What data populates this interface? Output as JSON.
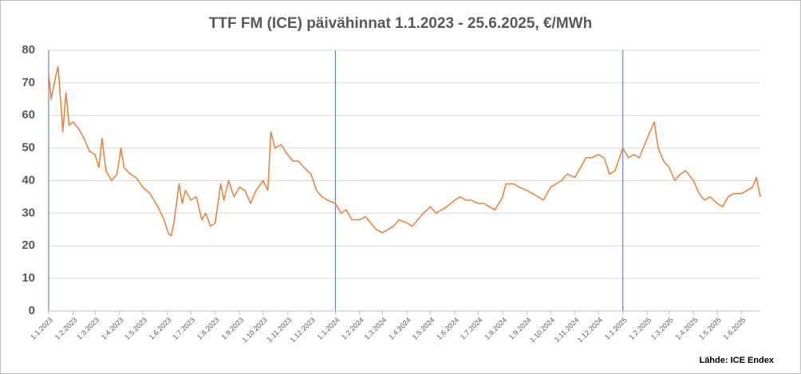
{
  "chart_data": {
    "type": "line",
    "title": "TTF FM (ICE) päivähinnat 1.1.2023 - 25.6.2025, €/MWh",
    "source": "Lähde: ICE Endex",
    "x": [
      "1.1.2023",
      "4.1.2023",
      "10.1.2023",
      "13.1.2023",
      "17.1.2023",
      "19.1.2023",
      "23.1.2023",
      "27.1.2023",
      "1.2.2023",
      "8.2.2023",
      "15.2.2023",
      "22.2.2023",
      "1.3.2023",
      "6.3.2023",
      "10.3.2023",
      "15.3.2023",
      "22.3.2023",
      "29.3.2023",
      "3.4.2023",
      "7.4.2023",
      "15.4.2023",
      "22.4.2023",
      "1.5.2023",
      "10.5.2023",
      "20.5.2023",
      "28.5.2023",
      "2.6.2023",
      "6.6.2023",
      "10.6.2023",
      "16.6.2023",
      "20.6.2023",
      "24.6.2023",
      "1.7.2023",
      "8.7.2023",
      "15.7.2023",
      "20.7.2023",
      "26.7.2023",
      "1.8.2023",
      "8.8.2023",
      "12.8.2023",
      "18.8.2023",
      "25.8.2023",
      "1.9.2023",
      "8.9.2023",
      "15.9.2023",
      "22.9.2023",
      "1.10.2023",
      "7.10.2023",
      "11.10.2023",
      "16.10.2023",
      "24.10.2023",
      "1.11.2023",
      "8.11.2023",
      "15.11.2023",
      "22.11.2023",
      "1.12.2023",
      "8.12.2023",
      "15.12.2023",
      "22.12.2023",
      "1.1.2024",
      "8.1.2024",
      "15.1.2024",
      "22.1.2024",
      "1.2.2024",
      "8.2.2024",
      "15.2.2024",
      "22.2.2024",
      "1.3.2024",
      "8.3.2024",
      "15.3.2024",
      "22.3.2024",
      "1.4.2024",
      "8.4.2024",
      "15.4.2024",
      "22.4.2024",
      "1.5.2024",
      "8.5.2024",
      "15.5.2024",
      "22.5.2024",
      "1.6.2024",
      "8.6.2024",
      "15.6.2024",
      "22.6.2024",
      "1.7.2024",
      "8.7.2024",
      "15.7.2024",
      "22.7.2024",
      "1.8.2024",
      "5.8.2024",
      "15.8.2024",
      "22.8.2024",
      "1.9.2024",
      "8.9.2024",
      "15.9.2024",
      "22.9.2024",
      "1.10.2024",
      "8.10.2024",
      "15.10.2024",
      "22.10.2024",
      "1.11.2024",
      "8.11.2024",
      "15.11.2024",
      "22.11.2024",
      "1.12.2024",
      "8.12.2024",
      "15.12.2024",
      "22.12.2024",
      "1.1.2025",
      "8.1.2025",
      "15.1.2025",
      "22.1.2025",
      "1.2.2025",
      "10.2.2025",
      "15.2.2025",
      "22.2.2025",
      "1.3.2025",
      "8.3.2025",
      "15.3.2025",
      "22.3.2025",
      "1.4.2025",
      "8.4.2025",
      "15.4.2025",
      "22.4.2025",
      "1.5.2025",
      "8.5.2025",
      "15.5.2025",
      "22.5.2025",
      "1.6.2025",
      "8.6.2025",
      "15.6.2025",
      "20.6.2025",
      "25.6.2025"
    ],
    "series": [
      {
        "color": "#ed7d31",
        "values": [
          73,
          65,
          72,
          75,
          62,
          55,
          67,
          57,
          58,
          56,
          53,
          49,
          48,
          44,
          53,
          43,
          40,
          42,
          50,
          44,
          42,
          41,
          38,
          36,
          32,
          28,
          24,
          23,
          28,
          39,
          33,
          37,
          34,
          35,
          28,
          30,
          26,
          27,
          39,
          34,
          40,
          35,
          38,
          37,
          33,
          37,
          40,
          37,
          55,
          50,
          51,
          48,
          46,
          46,
          44,
          42,
          37,
          35,
          34,
          33,
          30,
          31,
          28,
          28,
          29,
          27,
          25,
          24,
          25,
          26,
          28,
          27,
          26,
          28,
          30,
          32,
          30,
          31,
          32,
          34,
          35,
          34,
          34,
          33,
          33,
          32,
          31,
          35,
          39,
          39,
          38,
          37,
          36,
          35,
          34,
          38,
          39,
          40,
          42,
          41,
          44,
          47,
          47,
          48,
          47,
          42,
          43,
          50,
          47,
          48,
          47,
          53,
          58,
          50,
          46,
          44,
          40,
          42,
          43,
          40,
          36,
          34,
          35,
          33,
          32,
          35,
          36,
          36,
          37,
          38,
          41,
          35
        ]
      }
    ],
    "xticks": [
      "1.1.2023",
      "1.2.2023",
      "1.3.2023",
      "1.4.2023",
      "1.5.2023",
      "1.6.2023",
      "1.7.2023",
      "1.8.2023",
      "1.9.2023",
      "1.10.2023",
      "1.11.2023",
      "1.12.2023",
      "1.1.2024",
      "1.2.2024",
      "1.3.2024",
      "1.4.2024",
      "1.5.2024",
      "1.6.2024",
      "1.7.2024",
      "1.8.2024",
      "1.9.2024",
      "1.10.2024",
      "1.11.2024",
      "1.12.2024",
      "1.1.2025",
      "1.2.2025",
      "1.3.2025",
      "1.4.2025",
      "1.5.2025",
      "1.6.2025"
    ],
    "vlines": [
      "1.1.2023",
      "1.1.2024",
      "1.1.2025"
    ],
    "ylim": [
      0,
      80
    ],
    "yticks": [
      0,
      10,
      20,
      30,
      40,
      50,
      60,
      70,
      80
    ],
    "grid": true
  }
}
